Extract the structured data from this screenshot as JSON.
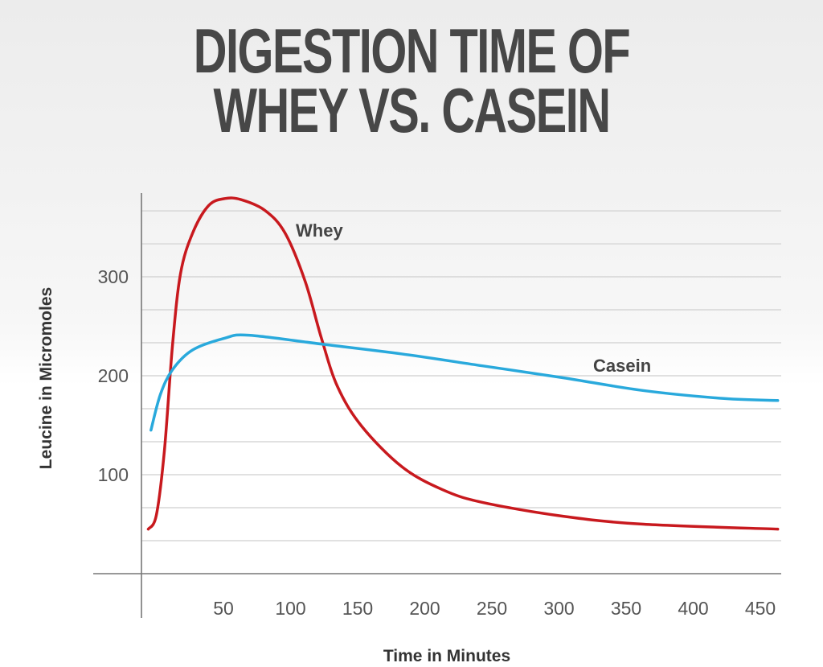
{
  "chart_data": {
    "type": "line",
    "title": [
      "DIGESTION TIME OF",
      "WHEY VS. CASEIN"
    ],
    "xlabel": "Time in Minutes",
    "ylabel": "Leucine in Micromoles",
    "xlim": [
      -11,
      465
    ],
    "ylim": [
      0,
      385
    ],
    "x_ticks": [
      50,
      100,
      150,
      200,
      250,
      300,
      350,
      400,
      450
    ],
    "y_ticks": [
      100,
      200,
      300
    ],
    "grid": true,
    "grid_step_y": 33.33,
    "series": [
      {
        "name": "Whey",
        "color": "#c8191e",
        "x": [
          -6,
          0,
          6,
          12,
          18,
          27,
          39,
          51,
          63,
          81,
          96,
          111,
          123,
          135,
          153,
          183,
          213,
          243,
          303,
          363,
          463
        ],
        "y": [
          45,
          59,
          124,
          230,
          303,
          344,
          372,
          379,
          378,
          367,
          344,
          295,
          238,
          189,
          149,
          108,
          85,
          72,
          58,
          50,
          45
        ]
      },
      {
        "name": "Casein",
        "color": "#29a9dc",
        "x": [
          -4,
          3,
          12,
          27,
          51,
          69,
          123,
          183,
          243,
          303,
          363,
          423,
          463
        ],
        "y": [
          145,
          181,
          206,
          226,
          238,
          241,
          232,
          222,
          210,
          198,
          185,
          177,
          175
        ]
      }
    ]
  }
}
